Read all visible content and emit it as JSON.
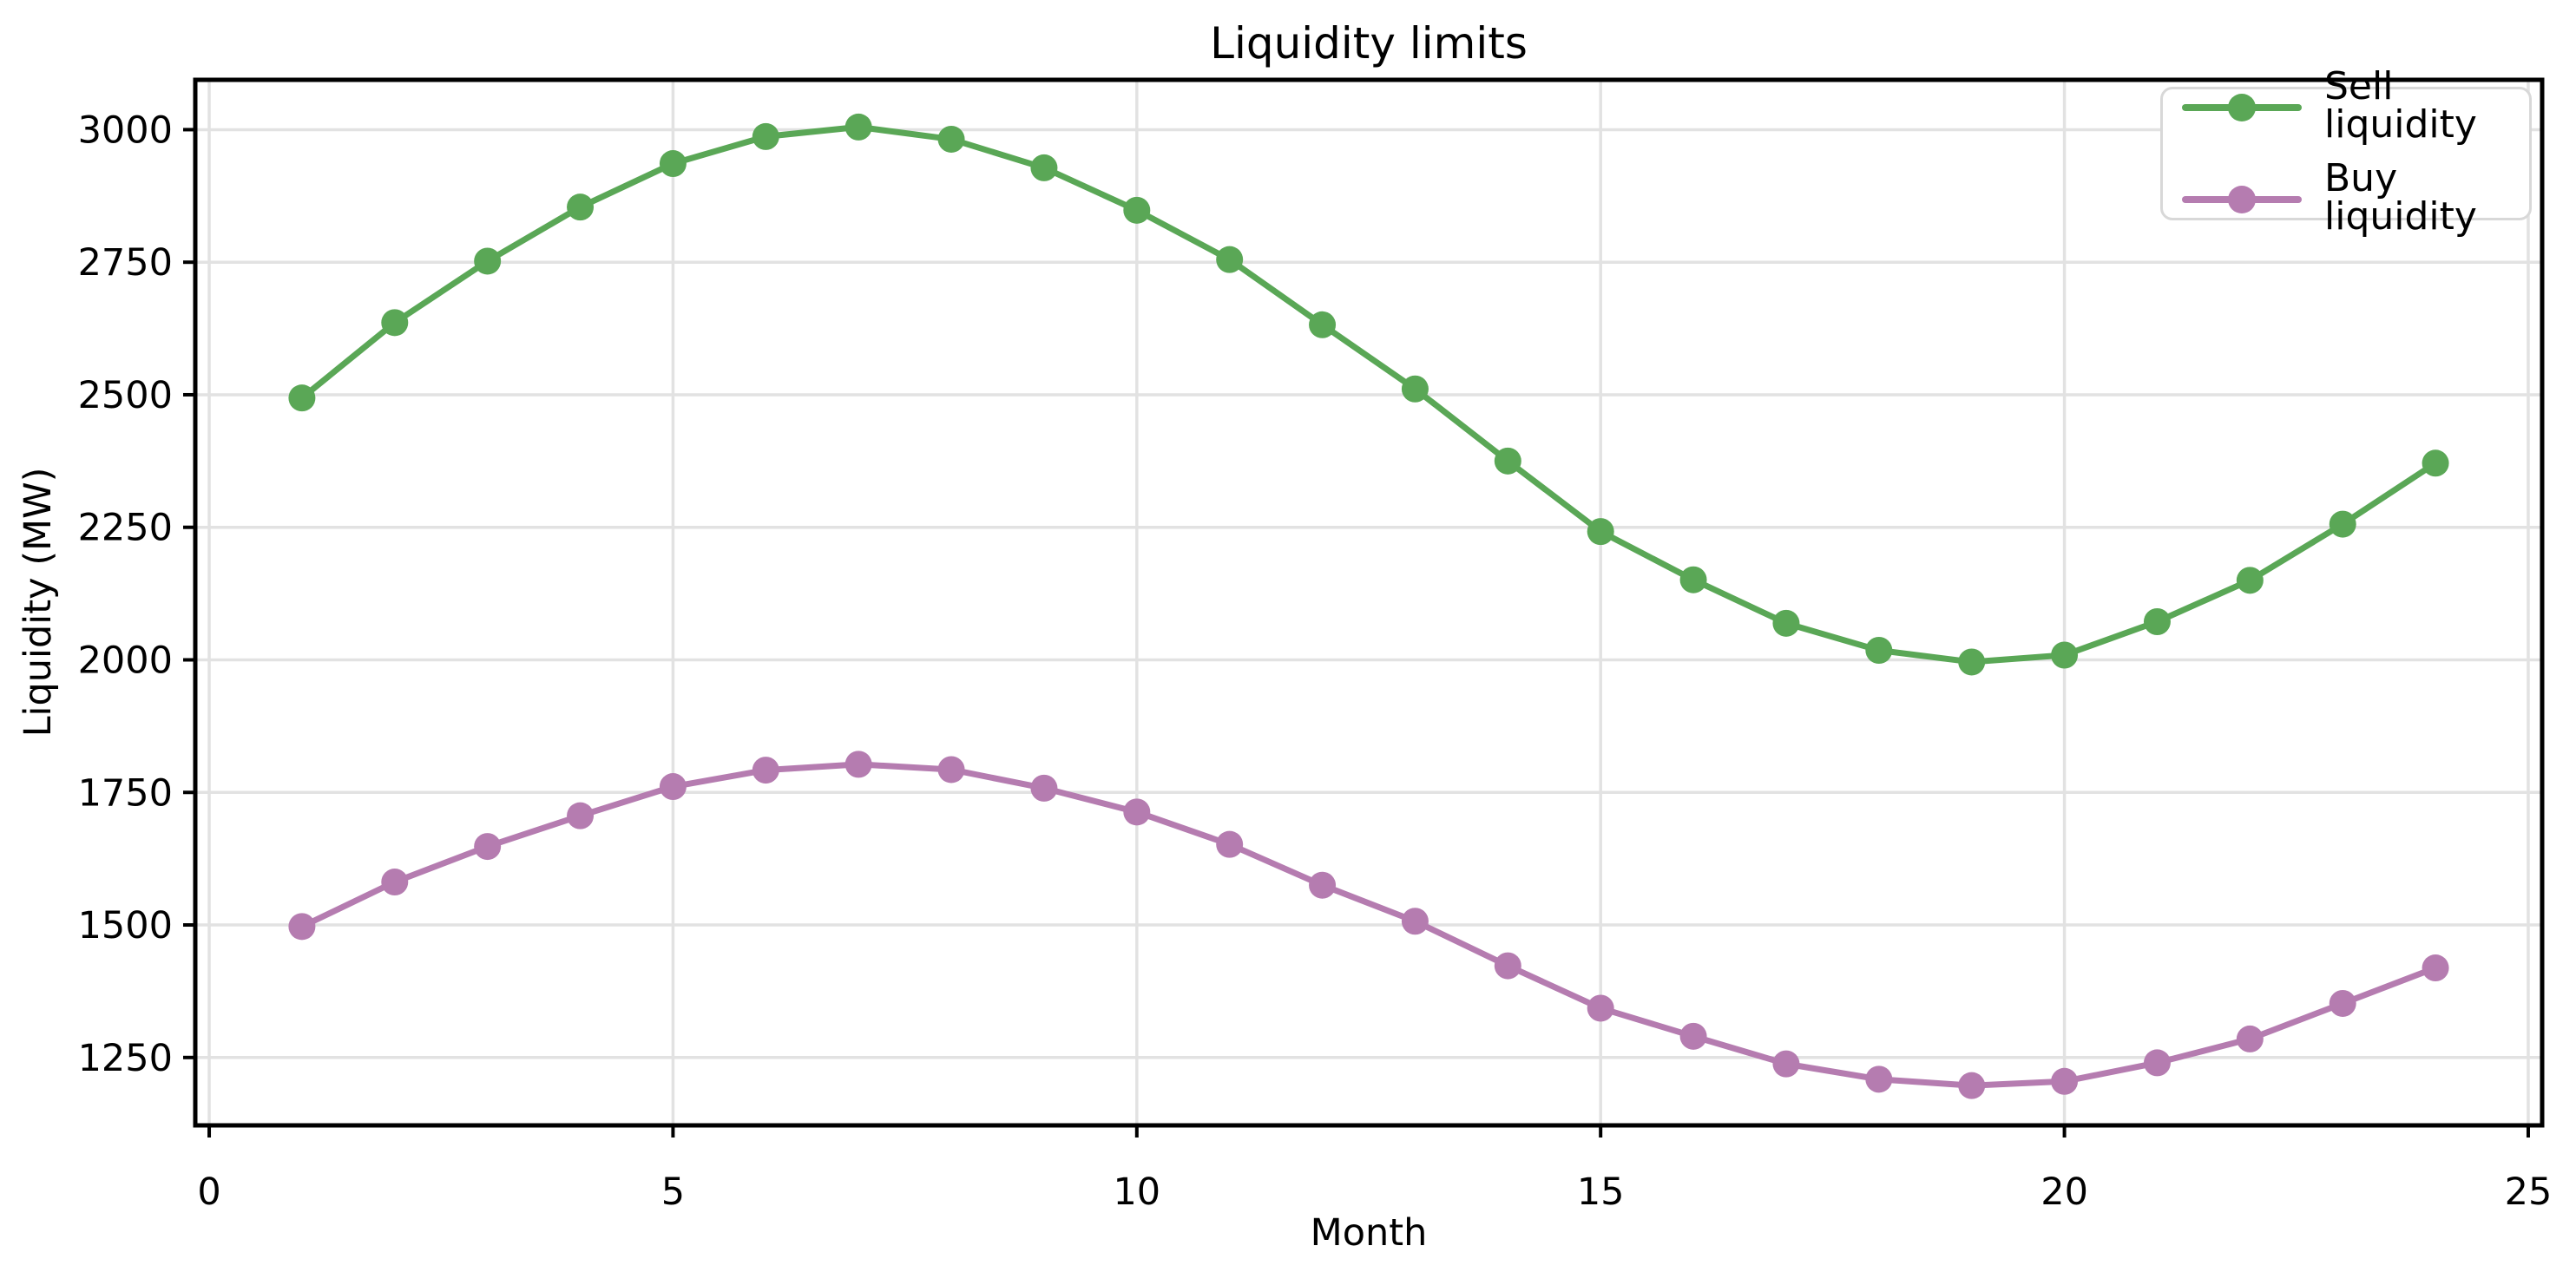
{
  "chart_data": {
    "type": "line",
    "title": "Liquidity limits",
    "xlabel": "Month",
    "ylabel": "Liquidity (MW)",
    "x": [
      1,
      2,
      3,
      4,
      5,
      6,
      7,
      8,
      9,
      10,
      11,
      12,
      13,
      14,
      15,
      16,
      17,
      18,
      19,
      20,
      21,
      22,
      23,
      24
    ],
    "series": [
      {
        "name": "Sell liquidity",
        "color": "#5aa756",
        "values": [
          2494,
          2636,
          2752,
          2854,
          2936,
          2987,
          3005,
          2982,
          2928,
          2848,
          2755,
          2632,
          2511,
          2375,
          2242,
          2151,
          2069,
          2018,
          1996,
          2009,
          2072,
          2150,
          2256,
          2371
        ]
      },
      {
        "name": "Buy liquidity",
        "color": "#b57cb0",
        "values": [
          1497,
          1581,
          1648,
          1706,
          1761,
          1792,
          1803,
          1793,
          1758,
          1713,
          1652,
          1575,
          1507,
          1423,
          1343,
          1290,
          1238,
          1209,
          1197,
          1205,
          1240,
          1285,
          1352,
          1419
        ]
      }
    ],
    "xticks": [
      0,
      5,
      10,
      15,
      20,
      25
    ],
    "yticks": [
      1250,
      1500,
      1750,
      2000,
      2250,
      2500,
      2750,
      3000
    ],
    "xlim": [
      -0.15,
      25.15
    ],
    "ylim": [
      1122,
      3094
    ],
    "grid": true,
    "grid_color": "#e2e2e2",
    "spine_color": "#000000",
    "legend_position": "upper right",
    "marker": "o"
  }
}
